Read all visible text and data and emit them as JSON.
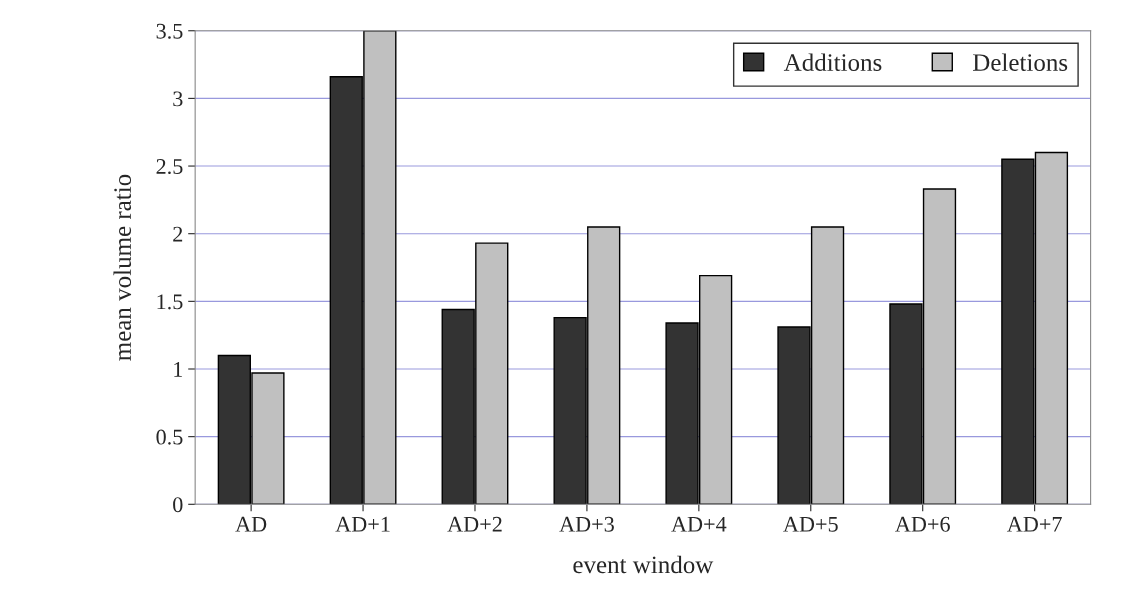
{
  "chart_data": {
    "type": "bar",
    "xlabel": "event window",
    "ylabel": "mean volume ratio",
    "categories": [
      "AD",
      "AD+1",
      "AD+2",
      "AD+3",
      "AD+4",
      "AD+5",
      "AD+6",
      "AD+7"
    ],
    "series": [
      {
        "name": "Additions",
        "color": "#333333",
        "values": [
          1.1,
          3.16,
          1.44,
          1.38,
          1.34,
          1.31,
          1.48,
          2.55
        ]
      },
      {
        "name": "Deletions",
        "color": "#c0c0c0",
        "values": [
          0.97,
          3.5,
          1.93,
          2.05,
          1.69,
          2.05,
          2.33,
          2.6
        ]
      }
    ],
    "ylim": [
      0,
      3.5
    ],
    "yticks": [
      0,
      0.5,
      1,
      1.5,
      2,
      2.5,
      3,
      3.5
    ],
    "grid": "y",
    "legend": "top right"
  }
}
